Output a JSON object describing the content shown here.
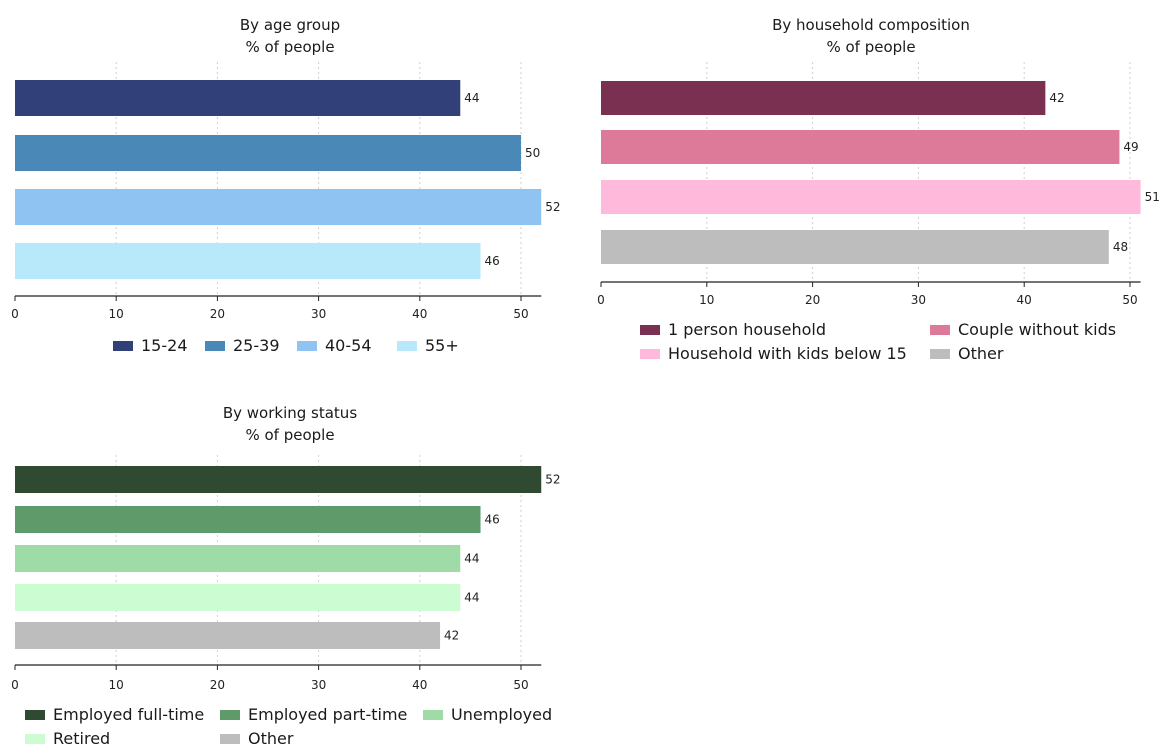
{
  "chart_data": [
    {
      "type": "bar",
      "orientation": "horizontal",
      "title": "By age group",
      "subtitle": "% of people",
      "categories": [
        "15-24",
        "25-39",
        "40-54",
        "55+"
      ],
      "values": [
        44,
        50,
        52,
        46
      ],
      "colors": [
        "#32407a",
        "#4a88b8",
        "#8fc4f2",
        "#b8e9fb"
      ],
      "xlim": [
        0,
        52
      ],
      "xticks": [
        0,
        10,
        20,
        30,
        40,
        50
      ],
      "grid": true,
      "legend": "bottom"
    },
    {
      "type": "bar",
      "orientation": "horizontal",
      "title": "By household composition",
      "subtitle": "% of people",
      "categories": [
        "1 person household",
        "Couple without kids",
        "Household with kids below 15",
        "Other"
      ],
      "values": [
        42,
        49,
        51,
        48
      ],
      "colors": [
        "#7a3050",
        "#de7a99",
        "#ffbadb",
        "#bdbdbd"
      ],
      "xlim": [
        0,
        51
      ],
      "xticks": [
        0,
        10,
        20,
        30,
        40,
        50
      ],
      "grid": true,
      "legend": "bottom"
    },
    {
      "type": "bar",
      "orientation": "horizontal",
      "title": "By working status",
      "subtitle": "% of people",
      "categories": [
        "Employed full-time",
        "Employed part-time",
        "Unemployed",
        "Retired",
        "Other"
      ],
      "values": [
        52,
        46,
        44,
        44,
        42
      ],
      "colors": [
        "#2f4a30",
        "#5f9a6b",
        "#9fdba6",
        "#ccfdd2",
        "#bdbdbd"
      ],
      "xlim": [
        0,
        52
      ],
      "xticks": [
        0,
        10,
        20,
        30,
        40,
        50
      ],
      "grid": true,
      "legend": "bottom"
    }
  ]
}
